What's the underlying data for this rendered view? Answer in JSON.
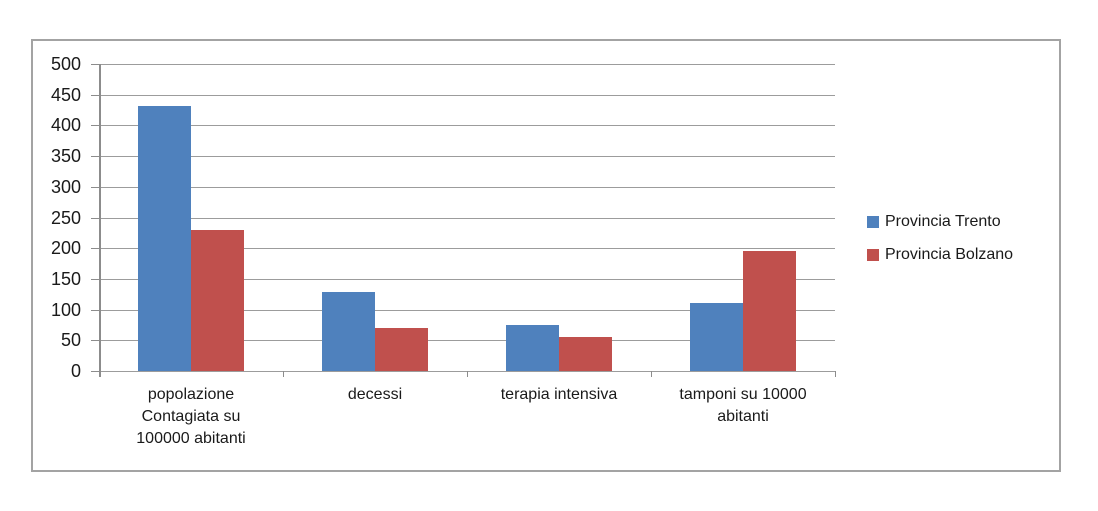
{
  "chart_data": {
    "type": "bar",
    "title": "",
    "xlabel": "",
    "ylabel": "",
    "categories": [
      "popolazione Contagiata su 100000 abitanti",
      "decessi",
      "terapia intensiva",
      "tamponi su 10000 abitanti"
    ],
    "category_label_lines": [
      "popolazione\nContagiata su\n100000 abitanti",
      "decessi",
      "terapia intensiva",
      "tamponi su 10000\nabitanti"
    ],
    "series": [
      {
        "name": "Provincia Trento",
        "color": "#4F81BD",
        "values": [
          432,
          128,
          75,
          110
        ]
      },
      {
        "name": "Provincia Bolzano",
        "color": "#C0504D",
        "values": [
          230,
          70,
          55,
          195
        ]
      }
    ],
    "ylim": [
      0,
      500
    ],
    "ytick_step": 50,
    "ytick_labels": [
      "0",
      "50",
      "100",
      "150",
      "200",
      "250",
      "300",
      "350",
      "400",
      "450",
      "500"
    ],
    "grid": true,
    "legend_position": "right",
    "colors": {
      "gridline": "#9c9c9c",
      "axis": "#8c8c8c",
      "frame_border": "#a3a3a3",
      "text": "#1a1a1a",
      "background": "#ffffff"
    }
  }
}
